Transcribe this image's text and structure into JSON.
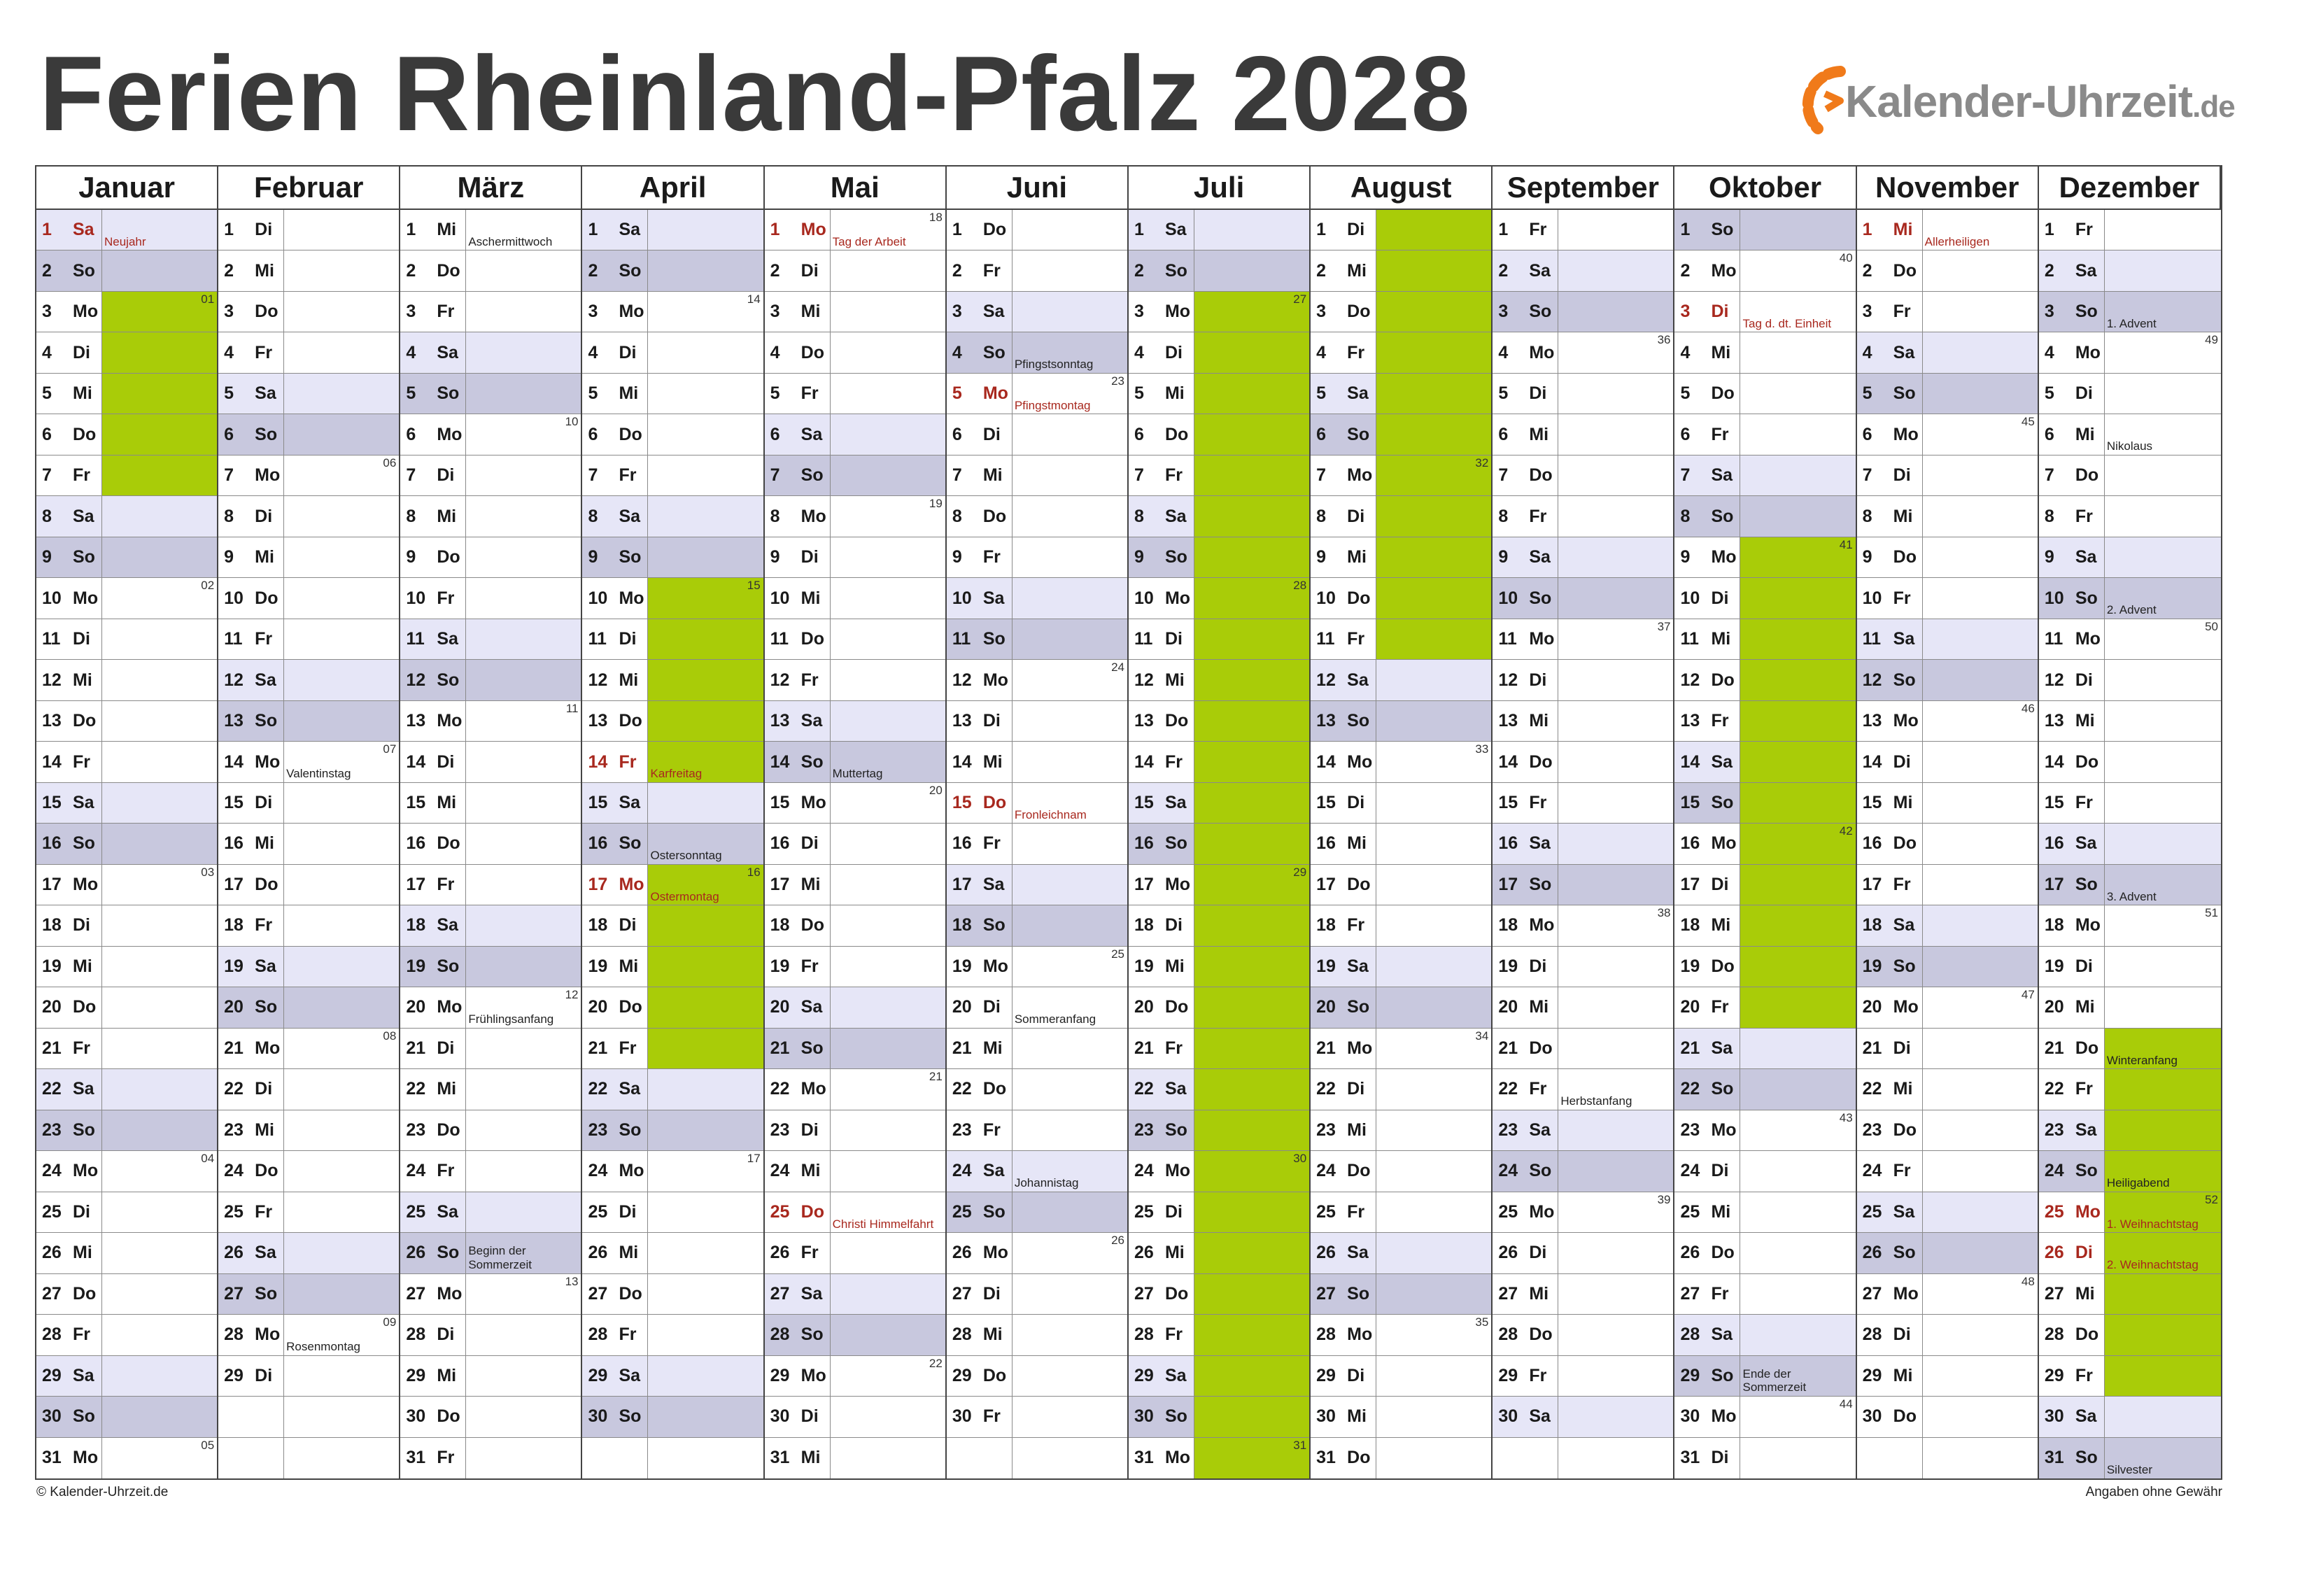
{
  "title": "Ferien Rheinland-Pfalz 2028",
  "logo": {
    "name": "Kalender-Uhrzeit",
    "tld": ".de",
    "accent": "#f07a1a",
    "text_color": "#8a8a8a"
  },
  "colors": {
    "ferien": "#a9cc08",
    "saturday": "#e6e6f7",
    "sunday": "#c8c8de",
    "holiday_text": "#a8281e"
  },
  "footer": {
    "copyright": "© Kalender-Uhrzeit.de",
    "disclaimer": "Angaben ohne Gewähr"
  },
  "months": [
    {
      "name": "Januar",
      "days": 31,
      "startDow": 5,
      "holidays": {
        "1": "Neujahr"
      },
      "notes": {},
      "ferien": [
        [
          3,
          7
        ]
      ]
    },
    {
      "name": "Februar",
      "days": 29,
      "startDow": 1,
      "holidays": {},
      "notes": {
        "14": "Valentinstag",
        "28": "Rosenmontag"
      },
      "ferien": []
    },
    {
      "name": "März",
      "days": 31,
      "startDow": 2,
      "holidays": {},
      "notes": {
        "1": "Aschermittwoch",
        "20": "Frühlingsanfang",
        "26": "Beginn der Sommerzeit"
      },
      "ferien": []
    },
    {
      "name": "April",
      "days": 30,
      "startDow": 5,
      "holidays": {
        "14": "Karfreitag",
        "17": "Ostermontag"
      },
      "notes": {
        "16": "Ostersonntag"
      },
      "ferien": [
        [
          10,
          14
        ],
        [
          17,
          21
        ]
      ]
    },
    {
      "name": "Mai",
      "days": 31,
      "startDow": 0,
      "holidays": {
        "1": "Tag der Arbeit",
        "25": "Christi Himmelfahrt"
      },
      "notes": {
        "14": "Muttertag"
      },
      "ferien": []
    },
    {
      "name": "Juni",
      "days": 30,
      "startDow": 3,
      "holidays": {
        "5": "Pfingstmontag",
        "15": "Fronleichnam"
      },
      "notes": {
        "4": "Pfingstsonntag",
        "20": "Sommeranfang",
        "24": "Johannistag"
      },
      "ferien": []
    },
    {
      "name": "Juli",
      "days": 31,
      "startDow": 5,
      "holidays": {},
      "notes": {},
      "ferien": [
        [
          3,
          31
        ]
      ]
    },
    {
      "name": "August",
      "days": 31,
      "startDow": 1,
      "holidays": {},
      "notes": {},
      "ferien": [
        [
          1,
          11
        ]
      ]
    },
    {
      "name": "September",
      "days": 30,
      "startDow": 4,
      "holidays": {},
      "notes": {
        "22": "Herbstanfang"
      },
      "ferien": []
    },
    {
      "name": "Oktober",
      "days": 31,
      "startDow": 6,
      "holidays": {
        "3": "Tag d. dt. Einheit"
      },
      "notes": {
        "29": "Ende der Sommerzeit"
      },
      "ferien": [
        [
          9,
          20
        ]
      ]
    },
    {
      "name": "November",
      "days": 30,
      "startDow": 2,
      "holidays": {
        "1": "Allerheiligen"
      },
      "notes": {},
      "ferien": []
    },
    {
      "name": "Dezember",
      "days": 31,
      "startDow": 4,
      "holidays": {
        "25": "1. Weihnachtstag",
        "26": "2. Weihnachtstag"
      },
      "notes": {
        "3": "1. Advent",
        "6": "Nikolaus",
        "10": "2. Advent",
        "17": "3. Advent",
        "21": "Winteranfang",
        "24": "Heiligabend",
        "31": "Silvester"
      },
      "ferien": [
        [
          21,
          29
        ]
      ]
    }
  ],
  "weekday_abbr": [
    "Mo",
    "Di",
    "Mi",
    "Do",
    "Fr",
    "Sa",
    "So"
  ],
  "week_numbers": [
    {
      "m": 0,
      "d": 3,
      "kw": "01"
    },
    {
      "m": 0,
      "d": 10,
      "kw": "02"
    },
    {
      "m": 0,
      "d": 17,
      "kw": "03"
    },
    {
      "m": 0,
      "d": 24,
      "kw": "04"
    },
    {
      "m": 0,
      "d": 31,
      "kw": "05"
    },
    {
      "m": 1,
      "d": 7,
      "kw": "06"
    },
    {
      "m": 1,
      "d": 14,
      "kw": "07"
    },
    {
      "m": 1,
      "d": 21,
      "kw": "08"
    },
    {
      "m": 1,
      "d": 28,
      "kw": "09"
    },
    {
      "m": 2,
      "d": 6,
      "kw": "10"
    },
    {
      "m": 2,
      "d": 13,
      "kw": "11"
    },
    {
      "m": 2,
      "d": 20,
      "kw": "12"
    },
    {
      "m": 2,
      "d": 27,
      "kw": "13"
    },
    {
      "m": 3,
      "d": 3,
      "kw": "14"
    },
    {
      "m": 3,
      "d": 10,
      "kw": "15"
    },
    {
      "m": 3,
      "d": 17,
      "kw": "16"
    },
    {
      "m": 3,
      "d": 24,
      "kw": "17"
    },
    {
      "m": 4,
      "d": 1,
      "kw": "18"
    },
    {
      "m": 4,
      "d": 8,
      "kw": "19"
    },
    {
      "m": 4,
      "d": 15,
      "kw": "20"
    },
    {
      "m": 4,
      "d": 22,
      "kw": "21"
    },
    {
      "m": 4,
      "d": 29,
      "kw": "22"
    },
    {
      "m": 5,
      "d": 5,
      "kw": "23"
    },
    {
      "m": 5,
      "d": 12,
      "kw": "24"
    },
    {
      "m": 5,
      "d": 19,
      "kw": "25"
    },
    {
      "m": 5,
      "d": 26,
      "kw": "26"
    },
    {
      "m": 6,
      "d": 3,
      "kw": "27"
    },
    {
      "m": 6,
      "d": 10,
      "kw": "28"
    },
    {
      "m": 6,
      "d": 17,
      "kw": "29"
    },
    {
      "m": 6,
      "d": 24,
      "kw": "30"
    },
    {
      "m": 6,
      "d": 31,
      "kw": "31"
    },
    {
      "m": 7,
      "d": 7,
      "kw": "32"
    },
    {
      "m": 7,
      "d": 14,
      "kw": "33"
    },
    {
      "m": 7,
      "d": 21,
      "kw": "34"
    },
    {
      "m": 7,
      "d": 28,
      "kw": "35"
    },
    {
      "m": 8,
      "d": 4,
      "kw": "36"
    },
    {
      "m": 8,
      "d": 11,
      "kw": "37"
    },
    {
      "m": 8,
      "d": 18,
      "kw": "38"
    },
    {
      "m": 8,
      "d": 25,
      "kw": "39"
    },
    {
      "m": 9,
      "d": 2,
      "kw": "40"
    },
    {
      "m": 9,
      "d": 9,
      "kw": "41"
    },
    {
      "m": 9,
      "d": 16,
      "kw": "42"
    },
    {
      "m": 9,
      "d": 23,
      "kw": "43"
    },
    {
      "m": 9,
      "d": 30,
      "kw": "44"
    },
    {
      "m": 10,
      "d": 6,
      "kw": "45"
    },
    {
      "m": 10,
      "d": 13,
      "kw": "46"
    },
    {
      "m": 10,
      "d": 20,
      "kw": "47"
    },
    {
      "m": 10,
      "d": 27,
      "kw": "48"
    },
    {
      "m": 11,
      "d": 4,
      "kw": "49"
    },
    {
      "m": 11,
      "d": 11,
      "kw": "50"
    },
    {
      "m": 11,
      "d": 18,
      "kw": "51"
    },
    {
      "m": 11,
      "d": 25,
      "kw": "52"
    }
  ]
}
